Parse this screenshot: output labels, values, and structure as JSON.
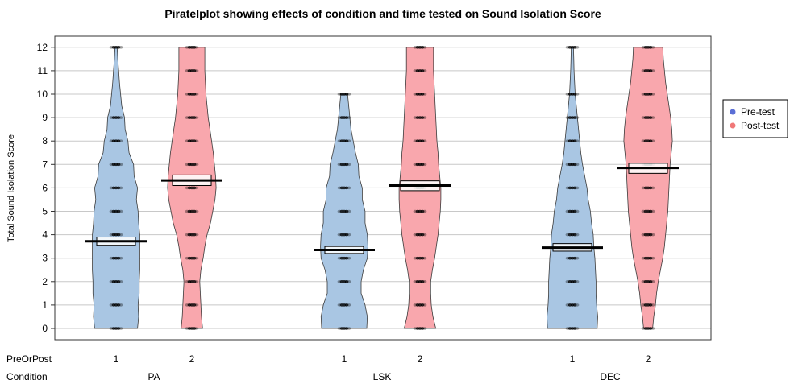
{
  "chart_data": {
    "type": "pirateplot",
    "title": "Piratelplot showing effects of condition and time tested on Sound Isolation Score",
    "xlabel": "",
    "ylabel": "Total Sound Isolation Score",
    "ylim": [
      -0.5,
      12.5
    ],
    "yticks": [
      0,
      1,
      2,
      3,
      4,
      5,
      6,
      7,
      8,
      9,
      10,
      11,
      12
    ],
    "grid": true,
    "legend_position": "right",
    "x_row_labels": [
      "PreOrPost",
      "Condition"
    ],
    "legend": [
      {
        "label": "Pre-test",
        "color": "#5b6fd6"
      },
      {
        "label": "Post-test",
        "color": "#f07878"
      }
    ],
    "colors": {
      "pre_fill": "#a9c6e3",
      "post_fill": "#f9a7ad",
      "point": "#000000"
    },
    "conditions": [
      "PA",
      "LSK",
      "DEC"
    ],
    "groups": [
      {
        "condition": "PA",
        "time": "1",
        "series": "Pre-test",
        "mean": 3.72,
        "hdi": [
          3.55,
          3.9
        ],
        "density": [
          [
            0,
            3.8
          ],
          [
            0.5,
            4.0
          ],
          [
            1,
            3.9
          ],
          [
            1.5,
            4.1
          ],
          [
            2,
            4.1
          ],
          [
            2.5,
            4.2
          ],
          [
            3,
            4.2
          ],
          [
            3.5,
            4.2
          ],
          [
            4,
            4.2
          ],
          [
            4.5,
            4.0
          ],
          [
            5,
            3.9
          ],
          [
            5.5,
            3.6
          ],
          [
            6,
            3.8
          ],
          [
            6.5,
            3.2
          ],
          [
            7,
            3.1
          ],
          [
            7.5,
            2.3
          ],
          [
            8,
            2.1
          ],
          [
            8.5,
            1.6
          ],
          [
            9,
            1.5
          ],
          [
            9.5,
            1.0
          ],
          [
            10,
            0.8
          ],
          [
            10.5,
            0.6
          ],
          [
            11,
            0.45
          ],
          [
            11.5,
            0.3
          ],
          [
            12,
            0.2
          ]
        ],
        "points": [
          0,
          1,
          2,
          3,
          4,
          5,
          6,
          7,
          8,
          9,
          12
        ]
      },
      {
        "condition": "PA",
        "time": "2",
        "series": "Post-test",
        "mean": 6.32,
        "hdi": [
          6.1,
          6.55
        ],
        "density": [
          [
            0,
            1.9
          ],
          [
            0.5,
            1.7
          ],
          [
            1,
            1.6
          ],
          [
            1.5,
            1.5
          ],
          [
            2,
            1.4
          ],
          [
            2.5,
            1.6
          ],
          [
            3,
            2.0
          ],
          [
            3.5,
            2.3
          ],
          [
            4,
            2.7
          ],
          [
            4.5,
            3.3
          ],
          [
            5,
            3.7
          ],
          [
            5.5,
            4.1
          ],
          [
            6,
            4.3
          ],
          [
            6.5,
            4.2
          ],
          [
            7,
            4.0
          ],
          [
            7.5,
            3.8
          ],
          [
            8,
            3.5
          ],
          [
            8.5,
            3.2
          ],
          [
            9,
            2.9
          ],
          [
            9.5,
            2.7
          ],
          [
            10,
            2.5
          ],
          [
            10.5,
            2.4
          ],
          [
            11,
            2.3
          ],
          [
            11.5,
            2.3
          ],
          [
            12,
            2.3
          ]
        ],
        "points": [
          0,
          1,
          2,
          3,
          4,
          5,
          6,
          7,
          8,
          9,
          10,
          11,
          12
        ]
      },
      {
        "condition": "LSK",
        "time": "1",
        "series": "Pre-test",
        "mean": 3.35,
        "hdi": [
          3.2,
          3.5
        ],
        "density": [
          [
            0,
            4.0
          ],
          [
            0.5,
            4.1
          ],
          [
            1,
            3.7
          ],
          [
            1.5,
            3.0
          ],
          [
            2,
            3.0
          ],
          [
            2.5,
            3.4
          ],
          [
            3,
            4.1
          ],
          [
            3.5,
            4.2
          ],
          [
            4,
            4.1
          ],
          [
            4.5,
            3.7
          ],
          [
            5,
            3.7
          ],
          [
            5.5,
            3.2
          ],
          [
            6,
            3.2
          ],
          [
            6.5,
            2.6
          ],
          [
            7,
            2.5
          ],
          [
            7.5,
            2.0
          ],
          [
            8,
            1.6
          ],
          [
            8.5,
            1.2
          ],
          [
            9,
            1.0
          ],
          [
            9.5,
            0.8
          ],
          [
            10,
            0.6
          ]
        ],
        "points": [
          0,
          1,
          2,
          3,
          4,
          5,
          6,
          7,
          8,
          9,
          10
        ]
      },
      {
        "condition": "LSK",
        "time": "2",
        "series": "Post-test",
        "mean": 6.1,
        "hdi": [
          5.88,
          6.3
        ],
        "density": [
          [
            0,
            2.8
          ],
          [
            0.5,
            2.3
          ],
          [
            1,
            2.0
          ],
          [
            1.5,
            1.9
          ],
          [
            2,
            1.9
          ],
          [
            2.5,
            2.2
          ],
          [
            3,
            2.6
          ],
          [
            3.5,
            2.9
          ],
          [
            4,
            3.2
          ],
          [
            4.5,
            3.4
          ],
          [
            5,
            3.6
          ],
          [
            5.5,
            3.7
          ],
          [
            6,
            3.7
          ],
          [
            6.5,
            3.5
          ],
          [
            7,
            3.3
          ],
          [
            7.5,
            3.2
          ],
          [
            8,
            3.0
          ],
          [
            8.5,
            2.9
          ],
          [
            9,
            2.8
          ],
          [
            9.5,
            2.7
          ],
          [
            10,
            2.6
          ],
          [
            10.5,
            2.5
          ],
          [
            11,
            2.4
          ],
          [
            11.5,
            2.4
          ],
          [
            12,
            2.4
          ]
        ],
        "points": [
          0,
          1,
          2,
          3,
          4,
          5,
          6,
          7,
          8,
          9,
          10,
          11,
          12
        ]
      },
      {
        "condition": "DEC",
        "time": "1",
        "series": "Pre-test",
        "mean": 3.45,
        "hdi": [
          3.3,
          3.62
        ],
        "density": [
          [
            0,
            4.4
          ],
          [
            0.5,
            4.5
          ],
          [
            1,
            4.3
          ],
          [
            1.5,
            4.2
          ],
          [
            2,
            4.2
          ],
          [
            2.5,
            4.1
          ],
          [
            3,
            4.0
          ],
          [
            3.5,
            3.8
          ],
          [
            4,
            3.7
          ],
          [
            4.5,
            3.4
          ],
          [
            5,
            3.2
          ],
          [
            5.5,
            2.8
          ],
          [
            6,
            2.6
          ],
          [
            6.5,
            2.2
          ],
          [
            7,
            1.8
          ],
          [
            7.5,
            1.5
          ],
          [
            8,
            1.3
          ],
          [
            8.5,
            1.1
          ],
          [
            9,
            0.9
          ],
          [
            9.5,
            0.7
          ],
          [
            10,
            0.5
          ],
          [
            10.5,
            0.4
          ],
          [
            11,
            0.3
          ],
          [
            11.5,
            0.25
          ],
          [
            12,
            0.2
          ]
        ],
        "points": [
          0,
          1,
          2,
          3,
          4,
          5,
          6,
          7,
          8,
          9,
          10,
          12
        ]
      },
      {
        "condition": "DEC",
        "time": "2",
        "series": "Post-test",
        "mean": 6.85,
        "hdi": [
          6.62,
          7.05
        ],
        "density": [
          [
            0,
            0.8
          ],
          [
            0.5,
            1.0
          ],
          [
            1,
            1.3
          ],
          [
            1.5,
            1.5
          ],
          [
            2,
            1.8
          ],
          [
            2.5,
            2.2
          ],
          [
            3,
            2.6
          ],
          [
            3.5,
            2.9
          ],
          [
            4,
            3.1
          ],
          [
            4.5,
            3.3
          ],
          [
            5,
            3.5
          ],
          [
            5.5,
            3.6
          ],
          [
            6,
            3.7
          ],
          [
            6.5,
            3.8
          ],
          [
            7,
            3.9
          ],
          [
            7.5,
            4.1
          ],
          [
            8,
            4.3
          ],
          [
            8.5,
            4.2
          ],
          [
            9,
            4.0
          ],
          [
            9.5,
            3.7
          ],
          [
            10,
            3.4
          ],
          [
            10.5,
            3.1
          ],
          [
            11,
            2.9
          ],
          [
            11.5,
            2.7
          ],
          [
            12,
            2.6
          ]
        ],
        "points": [
          0,
          1,
          2,
          3,
          4,
          5,
          6,
          7,
          8,
          9,
          10,
          11,
          12
        ]
      }
    ]
  }
}
